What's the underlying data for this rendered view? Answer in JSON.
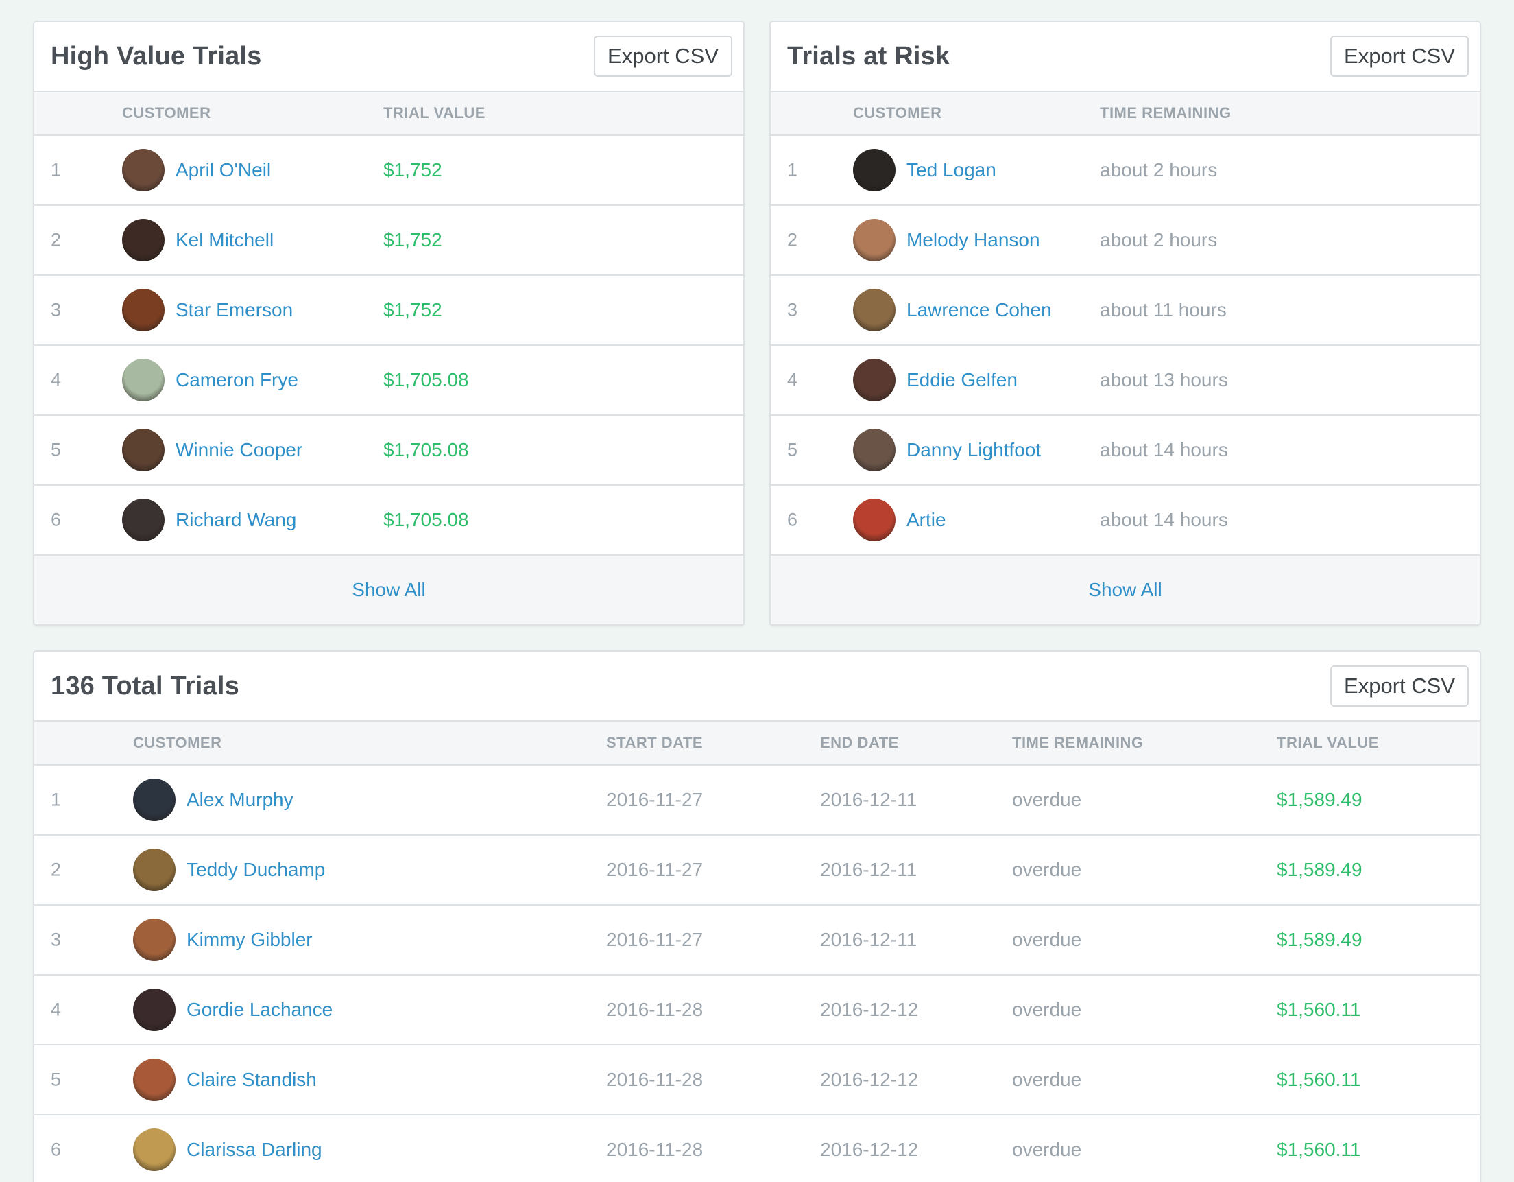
{
  "high_value": {
    "title": "High Value Trials",
    "export_label": "Export CSV",
    "columns": {
      "customer": "CUSTOMER",
      "value": "TRIAL VALUE"
    },
    "rows": [
      {
        "index": "1",
        "name": "April O'Neil",
        "value": "$1,752",
        "avatar_color": "#6b4a3a"
      },
      {
        "index": "2",
        "name": "Kel Mitchell",
        "value": "$1,752",
        "avatar_color": "#3d2a24"
      },
      {
        "index": "3",
        "name": "Star Emerson",
        "value": "$1,752",
        "avatar_color": "#7a3e22"
      },
      {
        "index": "4",
        "name": "Cameron Frye",
        "value": "$1,705.08",
        "avatar_color": "#a7b9a0"
      },
      {
        "index": "5",
        "name": "Winnie Cooper",
        "value": "$1,705.08",
        "avatar_color": "#5c4030"
      },
      {
        "index": "6",
        "name": "Richard Wang",
        "value": "$1,705.08",
        "avatar_color": "#3a3230"
      }
    ],
    "show_all": "Show All"
  },
  "at_risk": {
    "title": "Trials at Risk",
    "export_label": "Export CSV",
    "columns": {
      "customer": "CUSTOMER",
      "time": "TIME REMAINING"
    },
    "rows": [
      {
        "index": "1",
        "name": "Ted Logan",
        "time": "about 2 hours",
        "avatar_color": "#2a2624"
      },
      {
        "index": "2",
        "name": "Melody Hanson",
        "time": "about 2 hours",
        "avatar_color": "#b07a58"
      },
      {
        "index": "3",
        "name": "Lawrence Cohen",
        "time": "about 11 hours",
        "avatar_color": "#8a6a44"
      },
      {
        "index": "4",
        "name": "Eddie Gelfen",
        "time": "about 13 hours",
        "avatar_color": "#5a3a30"
      },
      {
        "index": "5",
        "name": "Danny Lightfoot",
        "time": "about 14 hours",
        "avatar_color": "#6a5448"
      },
      {
        "index": "6",
        "name": "Artie",
        "time": "about 14 hours",
        "avatar_color": "#b8402e"
      }
    ],
    "show_all": "Show All"
  },
  "total": {
    "title": "136 Total Trials",
    "export_label": "Export CSV",
    "columns": {
      "customer": "CUSTOMER",
      "start": "START DATE",
      "end": "END DATE",
      "time": "TIME REMAINING",
      "value": "TRIAL VALUE"
    },
    "rows": [
      {
        "index": "1",
        "name": "Alex Murphy",
        "start": "2016-11-27",
        "end": "2016-12-11",
        "time": "overdue",
        "value": "$1,589.49",
        "avatar_color": "#2c3440"
      },
      {
        "index": "2",
        "name": "Teddy Duchamp",
        "start": "2016-11-27",
        "end": "2016-12-11",
        "time": "overdue",
        "value": "$1,589.49",
        "avatar_color": "#8a6a3a"
      },
      {
        "index": "3",
        "name": "Kimmy Gibbler",
        "start": "2016-11-27",
        "end": "2016-12-11",
        "time": "overdue",
        "value": "$1,589.49",
        "avatar_color": "#a0603a"
      },
      {
        "index": "4",
        "name": "Gordie Lachance",
        "start": "2016-11-28",
        "end": "2016-12-12",
        "time": "overdue",
        "value": "$1,560.11",
        "avatar_color": "#3a2a2c"
      },
      {
        "index": "5",
        "name": "Claire Standish",
        "start": "2016-11-28",
        "end": "2016-12-12",
        "time": "overdue",
        "value": "$1,560.11",
        "avatar_color": "#a85a38"
      },
      {
        "index": "6",
        "name": "Clarissa Darling",
        "start": "2016-11-28",
        "end": "2016-12-12",
        "time": "overdue",
        "value": "$1,560.11",
        "avatar_color": "#c09a50"
      }
    ]
  }
}
